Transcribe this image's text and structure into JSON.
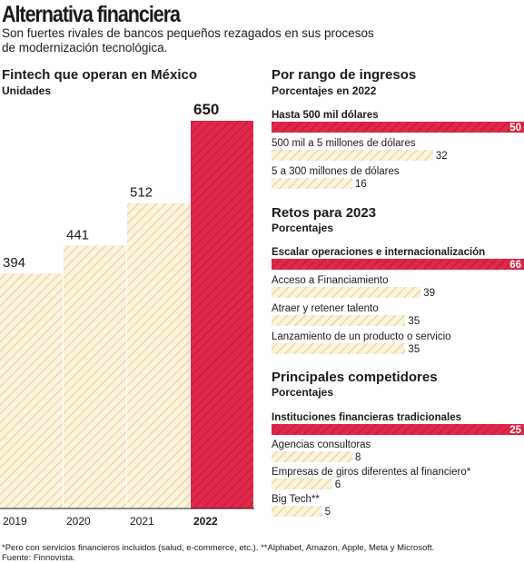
{
  "header": {
    "title": "Alternativa financiera",
    "subtitle": "Son fuertes rivales de bancos pequeños rezagados en sus procesos de modernización tecnológica."
  },
  "colors": {
    "highlight": "#e0284a",
    "highlight_stripe": "#b81a3a",
    "base": "#fbf3dc",
    "base_stripe": "#d9c084",
    "text": "#1a1a1a"
  },
  "chart_data": [
    {
      "type": "bar",
      "title": "Fintech que operan en México",
      "subtitle": "Unidades",
      "categories": [
        "2019",
        "2020",
        "2021",
        "2022"
      ],
      "values": [
        394,
        441,
        512,
        650
      ],
      "highlight_index": 3,
      "ylim": [
        0,
        650
      ]
    },
    {
      "type": "bar",
      "orientation": "horizontal",
      "title": "Por rango de ingresos",
      "subtitle": "Porcentajes en 2022",
      "categories": [
        "Hasta 500 mil dólares",
        "500 mil a 5 millones de dólares",
        "5 a 300 millones de dólares"
      ],
      "values": [
        50,
        32,
        16
      ],
      "highlight_index": 0
    },
    {
      "type": "bar",
      "orientation": "horizontal",
      "title": "Retos para 2023",
      "subtitle": "Porcentajes",
      "categories": [
        "Escalar operaciones e internacionalización",
        "Acceso a Financiamiento",
        "Atraer y retener talento",
        "Lanzamiento de un producto o servicio"
      ],
      "values": [
        66,
        39,
        35,
        35
      ],
      "highlight_index": 0
    },
    {
      "type": "bar",
      "orientation": "horizontal",
      "title": "Principales competidores",
      "subtitle": "Porcentajes",
      "categories": [
        "Instituciones financieras tradicionales",
        "Agencias consultoras",
        "Empresas de giros diferentes al financiero*",
        "Big Tech**"
      ],
      "values": [
        25,
        8,
        6,
        5
      ],
      "highlight_index": 0
    }
  ],
  "footer": {
    "note": "*Pero con servicios financieros incluidos (salud, e-commerce, etc.). **Alphabet, Amazon, Apple, Meta y Microsoft.",
    "source": "Fuente: Finnovista."
  }
}
